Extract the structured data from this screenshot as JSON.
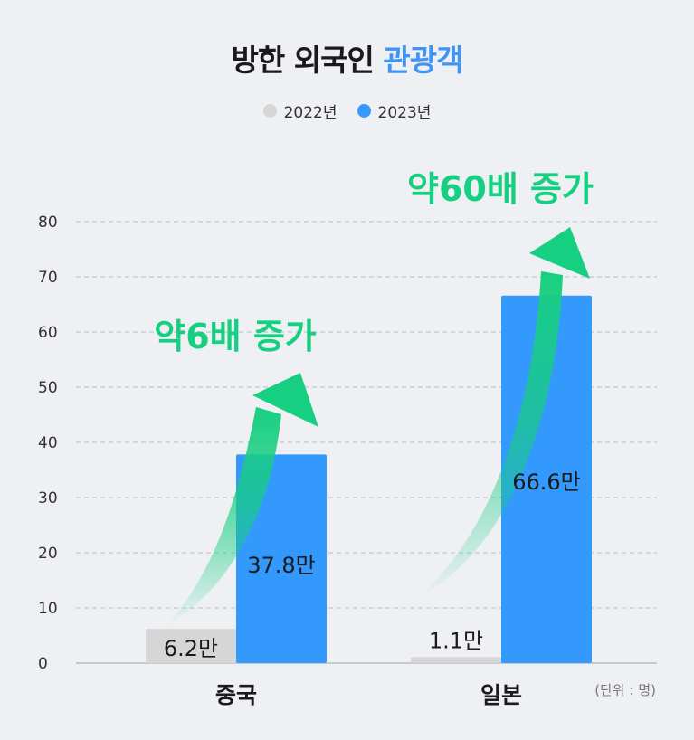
{
  "title": {
    "main": "방한 외국인 ",
    "accent": "관광객"
  },
  "colors": {
    "y2022": "#d6d6d6",
    "y2023": "#3399fc",
    "accent": "#3d95f5",
    "increase": "#17cf80"
  },
  "legend": [
    {
      "label": "2022년",
      "color": "#d6d6d6"
    },
    {
      "label": "2023년",
      "color": "#3399fc"
    }
  ],
  "unit_note": "(단위 : 명)",
  "chart_data": {
    "type": "bar",
    "categories": [
      "중국",
      "일본"
    ],
    "series": [
      {
        "name": "2022년",
        "values": [
          6.2,
          1.1
        ],
        "labels": [
          "6.2만",
          "1.1만"
        ]
      },
      {
        "name": "2023년",
        "values": [
          37.8,
          66.6
        ],
        "labels": [
          "37.8만",
          "66.6만"
        ]
      }
    ],
    "ylim": [
      0,
      80
    ],
    "yticks": [
      0,
      10,
      20,
      30,
      40,
      50,
      60,
      70,
      80
    ],
    "grid": true,
    "annotations": [
      {
        "category": "중국",
        "text": "약6배 증가"
      },
      {
        "category": "일본",
        "text": "약60배 증가"
      }
    ]
  }
}
